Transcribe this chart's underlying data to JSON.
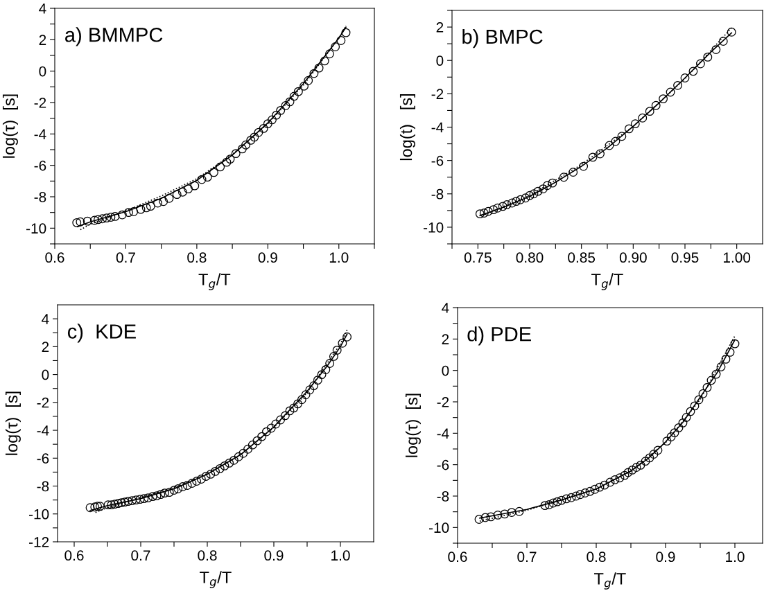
{
  "chart_data": [
    {
      "type": "scatter",
      "title": "a) BMMPC",
      "xlabel": "T$_{g}$/T",
      "ylabel": "log(τ)  [s]",
      "xlim": [
        0.6,
        1.05
      ],
      "ylim": [
        -11,
        4
      ],
      "xticks": [
        0.6,
        {
          "value": 0.65,
          "label": null
        },
        0.7,
        {
          "value": 0.75,
          "label": null
        },
        0.8,
        {
          "value": 0.85,
          "label": null
        },
        0.9,
        {
          "value": 0.95,
          "label": null
        },
        {
          "value": 1.0,
          "label": "1.0"
        },
        {
          "value": 1.05,
          "label": null
        }
      ],
      "yticks": [
        {
          "value": -11,
          "label": null
        },
        -10,
        {
          "value": -9,
          "label": null
        },
        -8,
        {
          "value": -7,
          "label": null
        },
        -6,
        {
          "value": -5,
          "label": null
        },
        -4,
        {
          "value": -3,
          "label": null
        },
        -2,
        {
          "value": -1,
          "label": null
        },
        0,
        {
          "value": 1,
          "label": null
        },
        2,
        {
          "value": 3,
          "label": null
        },
        4
      ],
      "grid": false,
      "series": [
        {
          "marker": "circle",
          "color": "#000000",
          "x": [
            0.631,
            0.636,
            0.646,
            0.656,
            0.661,
            0.667,
            0.673,
            0.679,
            0.685,
            0.695,
            0.704,
            0.711,
            0.721,
            0.729,
            0.735,
            0.745,
            0.753,
            0.761,
            0.772,
            0.78,
            0.788,
            0.797,
            0.807,
            0.815,
            0.824,
            0.833,
            0.842,
            0.847,
            0.855,
            0.864,
            0.869,
            0.876,
            0.881,
            0.887,
            0.894,
            0.9,
            0.906,
            0.912,
            0.918,
            0.925,
            0.931,
            0.937,
            0.943,
            0.951,
            0.957,
            0.965,
            0.972,
            0.98,
            0.987,
            0.995,
            1.003,
            1.01
          ],
          "values": [
            -9.65,
            -9.6,
            -9.55,
            -9.5,
            -9.45,
            -9.4,
            -9.35,
            -9.3,
            -9.25,
            -9.15,
            -9.0,
            -8.95,
            -8.8,
            -8.7,
            -8.6,
            -8.4,
            -8.3,
            -8.1,
            -7.85,
            -7.7,
            -7.5,
            -7.3,
            -6.9,
            -6.75,
            -6.45,
            -6.1,
            -5.8,
            -5.6,
            -5.25,
            -4.95,
            -4.7,
            -4.4,
            -4.2,
            -3.9,
            -3.65,
            -3.35,
            -3.1,
            -2.8,
            -2.5,
            -2.2,
            -1.95,
            -1.6,
            -1.3,
            -0.95,
            -0.6,
            -0.15,
            0.2,
            0.65,
            1.1,
            1.55,
            1.95,
            2.45
          ]
        },
        {
          "type": "line",
          "line_style": "solid",
          "color": "#000000",
          "x": [
            0.632,
            0.65,
            0.7,
            0.75,
            0.8,
            0.85,
            0.9,
            0.95,
            1.0,
            1.01
          ],
          "values": [
            -9.9,
            -9.6,
            -8.95,
            -8.1,
            -6.95,
            -5.35,
            -3.3,
            -0.8,
            2.1,
            2.8
          ]
        },
        {
          "type": "line",
          "line_style": "dotted",
          "color": "#000000",
          "x": [
            0.636,
            0.65,
            0.7,
            0.75,
            0.8,
            0.85,
            0.9,
            0.95,
            1.0,
            1.01
          ],
          "values": [
            -10.1,
            -9.75,
            -8.9,
            -7.95,
            -6.85,
            -5.3,
            -3.35,
            -0.9,
            2.1,
            2.9
          ]
        }
      ]
    },
    {
      "type": "scatter",
      "title": "b) BMPC",
      "xlabel": "T$_{g}$/T",
      "ylabel": "log(t)   [s]",
      "xlim": [
        0.725,
        1.025
      ],
      "ylim": [
        -11,
        3
      ],
      "xticks": [
        {
          "value": 0.725,
          "label": null
        },
        0.75,
        {
          "value": 0.775,
          "label": null
        },
        {
          "value": 0.8,
          "label": "0.80"
        },
        {
          "value": 0.825,
          "label": null
        },
        0.85,
        {
          "value": 0.875,
          "label": null
        },
        {
          "value": 0.9,
          "label": "0.90"
        },
        {
          "value": 0.925,
          "label": null
        },
        0.95,
        {
          "value": 0.975,
          "label": null
        },
        {
          "value": 1.0,
          "label": "1.00"
        }
      ],
      "yticks": [
        {
          "value": -11,
          "label": null
        },
        -10,
        {
          "value": -9,
          "label": null
        },
        -8,
        {
          "value": -7,
          "label": null
        },
        -6,
        {
          "value": -5,
          "label": null
        },
        -4,
        {
          "value": -3,
          "label": null
        },
        -2,
        {
          "value": -1,
          "label": null
        },
        0,
        {
          "value": 1,
          "label": null
        },
        2,
        {
          "value": 3,
          "label": null
        }
      ],
      "grid": false,
      "series": [
        {
          "marker": "circle",
          "color": "#000000",
          "x": [
            0.752,
            0.756,
            0.76,
            0.765,
            0.769,
            0.774,
            0.778,
            0.783,
            0.787,
            0.791,
            0.796,
            0.8,
            0.804,
            0.808,
            0.813,
            0.817,
            0.822,
            0.833,
            0.842,
            0.852,
            0.861,
            0.868,
            0.877,
            0.883,
            0.889,
            0.896,
            0.902,
            0.909,
            0.916,
            0.922,
            0.929,
            0.936,
            0.943,
            0.95,
            0.958,
            0.965,
            0.972,
            0.98,
            0.987,
            0.995
          ],
          "values": [
            -9.2,
            -9.15,
            -9.05,
            -8.95,
            -8.85,
            -8.75,
            -8.65,
            -8.55,
            -8.45,
            -8.35,
            -8.25,
            -8.1,
            -8.0,
            -7.85,
            -7.7,
            -7.5,
            -7.35,
            -7.0,
            -6.7,
            -6.35,
            -5.8,
            -5.6,
            -5.1,
            -4.85,
            -4.55,
            -4.1,
            -3.8,
            -3.45,
            -3.05,
            -2.7,
            -2.3,
            -1.9,
            -1.5,
            -1.05,
            -0.65,
            -0.2,
            0.2,
            0.65,
            1.15,
            1.7
          ]
        },
        {
          "type": "line",
          "line_style": "solid",
          "color": "#000000",
          "x": [
            0.752,
            0.775,
            0.8,
            0.825,
            0.85,
            0.875,
            0.9,
            0.925,
            0.95,
            0.975,
            0.995
          ],
          "values": [
            -9.3,
            -8.8,
            -8.15,
            -7.3,
            -6.35,
            -5.25,
            -3.95,
            -2.55,
            -1.05,
            0.5,
            1.65
          ]
        },
        {
          "type": "line",
          "line_style": "dotted",
          "color": "#000000",
          "x": [
            0.756,
            0.8,
            0.85,
            0.9,
            0.95,
            0.995
          ],
          "values": [
            -9.25,
            -8.1,
            -6.25,
            -3.95,
            -1.1,
            1.95
          ]
        }
      ]
    },
    {
      "type": "scatter",
      "title": "c)  KDE",
      "xlabel": "T$_{g}$/T",
      "ylabel": "log(τ)  [s]",
      "xlim": [
        0.575,
        1.05
      ],
      "ylim": [
        -12,
        5
      ],
      "xticks": [
        0.6,
        {
          "value": 0.65,
          "label": null
        },
        0.7,
        {
          "value": 0.75,
          "label": null
        },
        0.8,
        {
          "value": 0.85,
          "label": null
        },
        0.9,
        {
          "value": 0.95,
          "label": null
        },
        {
          "value": 1.0,
          "label": "1.0"
        }
      ],
      "yticks": [
        -12,
        {
          "value": -11,
          "label": null
        },
        -10,
        {
          "value": -9,
          "label": null
        },
        -8,
        {
          "value": -7,
          "label": null
        },
        -6,
        {
          "value": -5,
          "label": null
        },
        -4,
        {
          "value": -3,
          "label": null
        },
        -2,
        {
          "value": -1,
          "label": null
        },
        0,
        {
          "value": 1,
          "label": null
        },
        2,
        {
          "value": 3,
          "label": null
        },
        4
      ],
      "grid": false,
      "series": [
        {
          "marker": "circle",
          "color": "#000000",
          "x": [
            0.624,
            0.631,
            0.635,
            0.639,
            0.651,
            0.656,
            0.661,
            0.666,
            0.671,
            0.676,
            0.681,
            0.687,
            0.693,
            0.699,
            0.705,
            0.711,
            0.718,
            0.724,
            0.73,
            0.736,
            0.743,
            0.75,
            0.756,
            0.763,
            0.77,
            0.777,
            0.784,
            0.791,
            0.798,
            0.805,
            0.812,
            0.819,
            0.826,
            0.833,
            0.84,
            0.847,
            0.854,
            0.861,
            0.868,
            0.875,
            0.882,
            0.889,
            0.896,
            0.903,
            0.91,
            0.917,
            0.924,
            0.93,
            0.936,
            0.942,
            0.948,
            0.954,
            0.96,
            0.966,
            0.972,
            0.978,
            0.984,
            0.99,
            0.995,
            1.003,
            1.01
          ],
          "values": [
            -9.55,
            -9.5,
            -9.45,
            -9.45,
            -9.35,
            -9.35,
            -9.3,
            -9.25,
            -9.2,
            -9.15,
            -9.1,
            -9.05,
            -9.0,
            -8.95,
            -8.9,
            -8.85,
            -8.75,
            -8.7,
            -8.6,
            -8.5,
            -8.45,
            -8.3,
            -8.2,
            -8.05,
            -7.95,
            -7.8,
            -7.65,
            -7.5,
            -7.3,
            -7.15,
            -6.95,
            -6.75,
            -6.55,
            -6.35,
            -6.15,
            -5.9,
            -5.65,
            -5.35,
            -5.05,
            -4.75,
            -4.45,
            -4.1,
            -3.85,
            -3.55,
            -3.25,
            -2.95,
            -2.6,
            -2.4,
            -2.1,
            -1.8,
            -1.45,
            -1.1,
            -0.8,
            -0.4,
            0.0,
            0.35,
            0.8,
            1.3,
            1.75,
            2.25,
            2.7
          ]
        },
        {
          "type": "line",
          "line_style": "solid",
          "color": "#000000",
          "x": [
            0.624,
            0.65,
            0.7,
            0.75,
            0.8,
            0.85,
            0.9,
            0.95,
            0.98,
            1.0,
            1.01
          ],
          "values": [
            -9.75,
            -9.4,
            -8.9,
            -8.2,
            -7.15,
            -5.75,
            -3.75,
            -1.2,
            0.6,
            2.0,
            2.9
          ]
        },
        {
          "type": "line",
          "line_style": "dotted",
          "color": "#000000",
          "x": [
            0.632,
            0.65,
            0.7,
            0.75,
            0.8,
            0.85,
            0.9,
            0.95,
            1.0,
            1.011
          ],
          "values": [
            -9.9,
            -9.55,
            -8.85,
            -8.15,
            -7.1,
            -5.75,
            -3.8,
            -1.3,
            2.2,
            3.3
          ]
        }
      ]
    },
    {
      "type": "scatter",
      "title": "d) PDE",
      "xlabel": "T$_{g}$/T",
      "ylabel": "log(τ)  [s]",
      "xlim": [
        0.6,
        1.04
      ],
      "ylim": [
        -11,
        4
      ],
      "xticks": [
        0.6,
        {
          "value": 0.65,
          "label": null
        },
        0.7,
        {
          "value": 0.75,
          "label": null
        },
        0.8,
        {
          "value": 0.85,
          "label": null
        },
        0.9,
        {
          "value": 0.95,
          "label": null
        },
        {
          "value": 1.0,
          "label": "1.0"
        }
      ],
      "yticks": [
        {
          "value": -11,
          "label": null
        },
        -10,
        {
          "value": -9,
          "label": null
        },
        -8,
        {
          "value": -7,
          "label": null
        },
        -6,
        {
          "value": -5,
          "label": null
        },
        -4,
        {
          "value": -3,
          "label": null
        },
        -2,
        {
          "value": -1,
          "label": null
        },
        0,
        {
          "value": 1,
          "label": null
        },
        2,
        {
          "value": 3,
          "label": null
        },
        4
      ],
      "grid": false,
      "series": [
        {
          "marker": "circle",
          "color": "#000000",
          "x": [
            0.631,
            0.64,
            0.648,
            0.658,
            0.668,
            0.678,
            0.689,
            0.726,
            0.732,
            0.738,
            0.744,
            0.75,
            0.757,
            0.764,
            0.771,
            0.777,
            0.784,
            0.791,
            0.798,
            0.805,
            0.812,
            0.82,
            0.827,
            0.834,
            0.841,
            0.846,
            0.852,
            0.858,
            0.864,
            0.871,
            0.877,
            0.883,
            0.889,
            0.902,
            0.908,
            0.913,
            0.919,
            0.925,
            0.93,
            0.936,
            0.942,
            0.948,
            0.954,
            0.96,
            0.966,
            0.973,
            0.98,
            0.987,
            0.993,
            1.0
          ],
          "values": [
            -9.48,
            -9.37,
            -9.32,
            -9.21,
            -9.14,
            -9.04,
            -8.98,
            -8.6,
            -8.55,
            -8.44,
            -8.36,
            -8.27,
            -8.17,
            -8.1,
            -8.0,
            -7.9,
            -7.8,
            -7.7,
            -7.57,
            -7.43,
            -7.3,
            -7.12,
            -6.96,
            -6.84,
            -6.68,
            -6.5,
            -6.34,
            -6.17,
            -6.03,
            -5.78,
            -5.57,
            -5.33,
            -5.08,
            -4.5,
            -4.23,
            -3.97,
            -3.65,
            -3.34,
            -2.99,
            -2.61,
            -2.26,
            -1.87,
            -1.48,
            -1.09,
            -0.63,
            -0.24,
            0.23,
            0.72,
            1.16,
            1.7
          ]
        },
        {
          "type": "line",
          "line_style": "solid",
          "color": "#000000",
          "x": [
            0.632,
            0.7,
            0.75,
            0.8,
            0.85,
            0.875,
            0.9,
            0.925,
            0.95,
            0.975,
            1.0
          ],
          "values": [
            -9.4,
            -8.85,
            -8.25,
            -7.55,
            -6.4,
            -5.6,
            -4.55,
            -3.3,
            -1.7,
            -0.1,
            1.95
          ]
        },
        {
          "type": "line",
          "line_style": "dotted",
          "color": "#000000",
          "x": [
            0.632,
            0.7,
            0.75,
            0.8,
            0.85,
            0.9,
            0.95,
            1.0
          ],
          "values": [
            -9.6,
            -8.9,
            -8.25,
            -7.55,
            -6.4,
            -4.6,
            -1.85,
            2.2
          ]
        }
      ]
    }
  ]
}
